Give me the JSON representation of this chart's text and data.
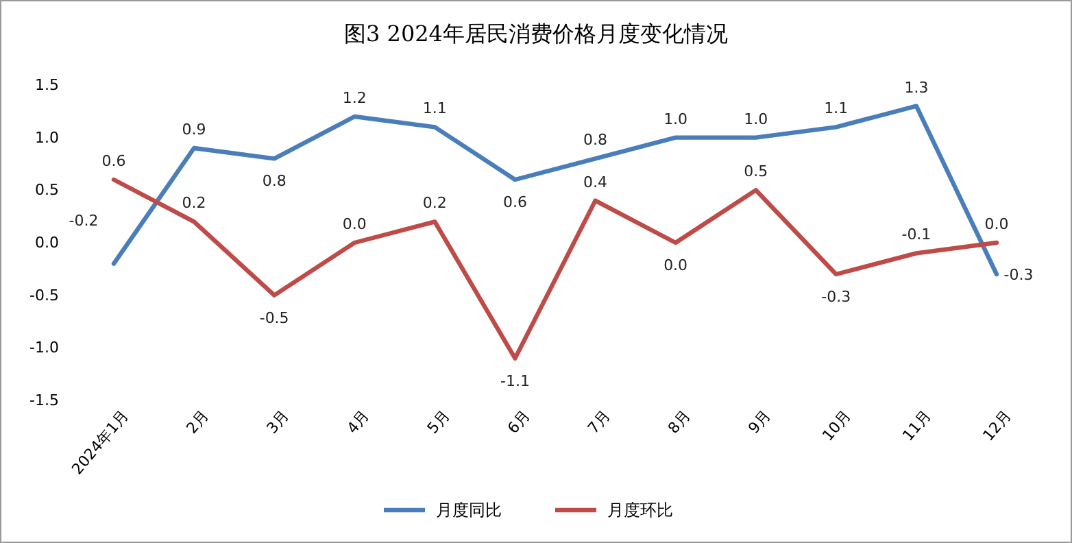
{
  "chart_data": {
    "type": "line",
    "title": "图3 2024年居民消费价格月度变化情况",
    "categories": [
      "2024年1月",
      "2月",
      "3月",
      "4月",
      "5月",
      "6月",
      "7月",
      "8月",
      "9月",
      "10月",
      "11月",
      "12月"
    ],
    "series": [
      {
        "name": "月度同比",
        "color": "#4a7ebb",
        "values": [
          -0.2,
          0.9,
          0.8,
          1.2,
          1.1,
          0.6,
          0.8,
          1.0,
          1.0,
          1.1,
          1.3,
          -0.3
        ],
        "value_labels": [
          "-0.2",
          "0.9",
          "0.8",
          "1.2",
          "1.1",
          "0.6",
          "0.8",
          "1.0",
          "1.0",
          "1.1",
          "1.3",
          "-0.3"
        ]
      },
      {
        "name": "月度环比",
        "color": "#be4b48",
        "values": [
          0.6,
          0.2,
          -0.5,
          0.0,
          0.2,
          -1.1,
          0.4,
          0.0,
          0.5,
          -0.3,
          -0.1,
          0.0
        ],
        "value_labels": [
          "0.6",
          "0.2",
          "-0.5",
          "0.0",
          "0.2",
          "-1.1",
          "0.4",
          "0.0",
          "0.5",
          "-0.3",
          "-0.1",
          "0.0"
        ]
      }
    ],
    "ylim": [
      -1.5,
      1.5
    ],
    "yticks": [
      {
        "value": -1.5,
        "label": "-1.5"
      },
      {
        "value": -1,
        "label": "-1.0"
      },
      {
        "value": -0.5,
        "label": "-0.5"
      },
      {
        "value": 0,
        "label": "0.0"
      },
      {
        "value": 0.5,
        "label": "0.5"
      },
      {
        "value": 1,
        "label": "1.0"
      },
      {
        "value": 1.5,
        "label": "1.5"
      }
    ],
    "legend": "bottom",
    "marker": "none",
    "line_style": "solid",
    "grid": false
  }
}
